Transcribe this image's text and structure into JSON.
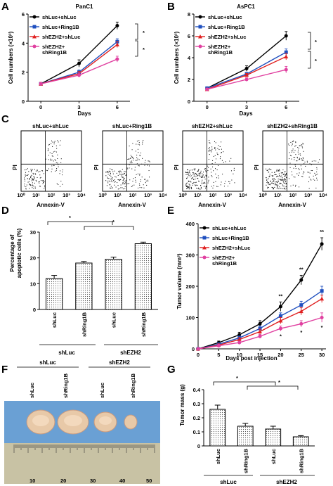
{
  "panels": {
    "A": {
      "letter": "A",
      "title": "PanC1",
      "xlabel": "Days",
      "ylabel": "Cell numbers (×10³)",
      "sig": [
        "*",
        "*"
      ]
    },
    "B": {
      "letter": "B",
      "title": "AsPC1",
      "xlabel": "Days",
      "ylabel": "Cell numbers (×10³)",
      "sig": [
        "*",
        "*"
      ]
    },
    "C": {
      "letter": "C",
      "plots": [
        {
          "title": "shLuc+shLuc",
          "xlabel": "Annexin-V",
          "ylabel": "PI"
        },
        {
          "title": "shLuc+Ring1B",
          "xlabel": "Annexin-V",
          "ylabel": "PI"
        },
        {
          "title": "shEZH2+shLuc",
          "xlabel": "Annexin-V",
          "ylabel": "PI"
        },
        {
          "title": "shEZH2+shRing1B",
          "xlabel": "Annexin-V",
          "ylabel": "PI"
        }
      ]
    },
    "D": {
      "letter": "D",
      "ylabel1": "Percentage of",
      "ylabel2": "apoptotic cells (%)",
      "bar_labels": [
        "shLuc",
        "shRing1B",
        "shLuc",
        "shRing1B"
      ],
      "group_labels": [
        "shLuc",
        "shEZH2"
      ],
      "sig": [
        "*",
        "*"
      ]
    },
    "E": {
      "letter": "E",
      "xlabel": "Days post injection",
      "ylabel": "Tumor volume (mm³)",
      "sig_top": [
        "**",
        "**",
        "**"
      ],
      "sig_bottom": [
        "*",
        "*",
        "*"
      ]
    },
    "F": {
      "letter": "F",
      "lane_labels": [
        "shLuc",
        "shRing1B",
        "shLuc",
        "shRing1B"
      ],
      "group_labels": [
        "shLuc",
        "shEZH2"
      ],
      "ruler_labels": [
        "10",
        "20",
        "30",
        "40",
        "50"
      ]
    },
    "G": {
      "letter": "G",
      "ylabel": "Tumor mass (g)",
      "bar_labels": [
        "shLuc",
        "shRing1B",
        "shLuc",
        "shRing1B"
      ],
      "group_labels": [
        "shLuc",
        "shEZH2"
      ],
      "sig": [
        "*",
        "*"
      ]
    }
  },
  "chart_data": [
    {
      "panel": "A",
      "type": "line",
      "title": "PanC1",
      "xlabel": "Days",
      "ylabel": "Cell numbers (×10³)",
      "x": [
        0,
        3,
        6
      ],
      "xlim": [
        -1,
        7
      ],
      "ylim": [
        0,
        6
      ],
      "yticks": [
        0,
        2,
        4,
        6
      ],
      "series": [
        {
          "name": "shLuc+shLuc",
          "color": "#000000",
          "marker": "circle",
          "values": [
            1.2,
            2.6,
            5.2
          ],
          "err": [
            0.1,
            0.25,
            0.25
          ]
        },
        {
          "name": "shLuc+Ring1B",
          "color": "#1f4fbf",
          "marker": "square",
          "values": [
            1.2,
            2.0,
            4.1
          ],
          "err": [
            0.1,
            0.15,
            0.2
          ]
        },
        {
          "name": "shEZH2+shLuc",
          "color": "#e02020",
          "marker": "triangle",
          "values": [
            1.2,
            1.9,
            3.9
          ],
          "err": [
            0.1,
            0.15,
            0.2
          ]
        },
        {
          "name": "shEZH2+ shRing1B",
          "color": "#e040a0",
          "marker": "circle",
          "values": [
            1.2,
            1.8,
            2.9
          ],
          "err": [
            0.1,
            0.15,
            0.2
          ]
        }
      ]
    },
    {
      "panel": "B",
      "type": "line",
      "title": "AsPC1",
      "xlabel": "Days",
      "ylabel": "Cell numbers (×10³)",
      "x": [
        0,
        3,
        6
      ],
      "xlim": [
        -1,
        7
      ],
      "ylim": [
        0,
        8
      ],
      "yticks": [
        0,
        2,
        4,
        6,
        8
      ],
      "series": [
        {
          "name": "shLuc+shLuc",
          "color": "#000000",
          "marker": "circle",
          "values": [
            1.2,
            3.0,
            6.0
          ],
          "err": [
            0.1,
            0.25,
            0.4
          ]
        },
        {
          "name": "shLuc+Ring1B",
          "color": "#1f4fbf",
          "marker": "square",
          "values": [
            1.2,
            2.5,
            4.5
          ],
          "err": [
            0.1,
            0.15,
            0.3
          ]
        },
        {
          "name": "shEZH2+shLuc",
          "color": "#e02020",
          "marker": "triangle",
          "values": [
            1.1,
            2.4,
            4.1
          ],
          "err": [
            0.1,
            0.15,
            0.3
          ]
        },
        {
          "name": "shEZH2+ shRing1B",
          "color": "#e040a0",
          "marker": "circle",
          "values": [
            1.1,
            2.0,
            2.9
          ],
          "err": [
            0.1,
            0.15,
            0.3
          ]
        }
      ]
    },
    {
      "panel": "D",
      "type": "bar",
      "ylabel": "Percentage of apoptotic cells (%)",
      "categories": [
        "shLuc",
        "shRing1B",
        "shLuc",
        "shRing1B"
      ],
      "values": [
        12,
        18,
        19.5,
        25.5
      ],
      "err": [
        1.2,
        0.6,
        0.8,
        0.6
      ],
      "ylim": [
        0,
        30
      ],
      "yticks": [
        0,
        10,
        20,
        30
      ]
    },
    {
      "panel": "E",
      "type": "line",
      "xlabel": "Days post injection",
      "ylabel": "Tumor volume (mm³)",
      "x": [
        0,
        5,
        10,
        15,
        20,
        25,
        30
      ],
      "xlim": [
        0,
        31
      ],
      "ylim": [
        0,
        400
      ],
      "yticks": [
        0,
        100,
        200,
        300,
        400
      ],
      "series": [
        {
          "name": "shLuc+shLuc",
          "color": "#000000",
          "marker": "circle",
          "values": [
            0,
            20,
            45,
            80,
            135,
            220,
            335
          ],
          "err": [
            0,
            5,
            8,
            10,
            15,
            15,
            20
          ]
        },
        {
          "name": "shLuc+Ring1B",
          "color": "#1f4fbf",
          "marker": "square",
          "values": [
            0,
            15,
            35,
            65,
            105,
            140,
            185
          ],
          "err": [
            0,
            4,
            6,
            8,
            10,
            12,
            15
          ]
        },
        {
          "name": "shEZH2+shLuc",
          "color": "#e02020",
          "marker": "triangle",
          "values": [
            0,
            12,
            30,
            55,
            90,
            120,
            160
          ],
          "err": [
            0,
            4,
            6,
            8,
            10,
            12,
            12
          ]
        },
        {
          "name": "shEZH2+ shRing1B",
          "color": "#e040a0",
          "marker": "circle",
          "values": [
            0,
            10,
            20,
            40,
            65,
            80,
            100
          ],
          "err": [
            0,
            4,
            5,
            6,
            8,
            10,
            15
          ]
        }
      ]
    },
    {
      "panel": "G",
      "type": "bar",
      "ylabel": "Tumor mass (g)",
      "categories": [
        "shLuc",
        "shRing1B",
        "shLuc",
        "shRing1B"
      ],
      "values": [
        0.26,
        0.14,
        0.12,
        0.065
      ],
      "err": [
        0.03,
        0.02,
        0.02,
        0.008
      ],
      "ylim": [
        0,
        0.4
      ],
      "yticks": [
        0.0,
        0.1,
        0.2,
        0.3,
        0.4
      ]
    }
  ]
}
